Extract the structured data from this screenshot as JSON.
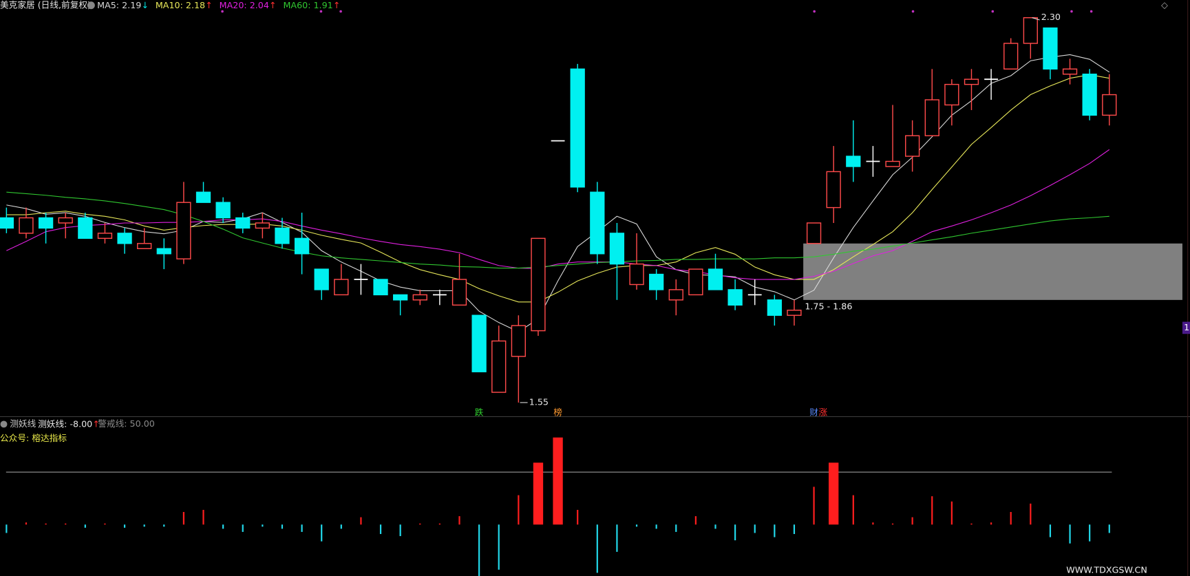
{
  "chart_data": [
    {
      "type": "candlestick",
      "title": "美克家居 (日线,前复权)",
      "ylim": [
        1.53,
        2.33
      ],
      "candles": {
        "open": [
          1.91,
          1.88,
          1.91,
          1.9,
          1.91,
          1.87,
          1.88,
          1.85,
          1.85,
          1.83,
          1.96,
          1.94,
          1.91,
          1.89,
          1.89,
          1.87,
          1.81,
          1.76,
          1.79,
          1.79,
          1.76,
          1.75,
          1.76,
          1.74,
          1.72,
          1.57,
          1.64,
          1.69,
          2.06,
          2.2,
          1.96,
          1.88,
          1.78,
          1.8,
          1.75,
          1.76,
          1.81,
          1.77,
          1.76,
          1.75,
          1.72,
          1.86,
          1.93,
          2.03,
          2.02,
          2.01,
          2.03,
          2.07,
          2.13,
          2.17,
          2.18,
          2.2,
          2.25,
          2.28,
          2.19,
          2.19,
          2.11
        ],
        "high": [
          1.93,
          1.93,
          1.92,
          1.92,
          1.92,
          1.9,
          1.89,
          1.89,
          1.87,
          1.98,
          1.98,
          1.95,
          1.92,
          1.92,
          1.91,
          1.92,
          1.81,
          1.82,
          1.82,
          1.79,
          1.76,
          1.77,
          1.77,
          1.84,
          1.72,
          1.7,
          1.72,
          1.87,
          2.06,
          2.21,
          1.98,
          1.9,
          1.88,
          1.81,
          1.79,
          1.81,
          1.84,
          1.79,
          1.79,
          1.76,
          1.75,
          1.9,
          2.05,
          2.1,
          2.05,
          2.13,
          2.1,
          2.2,
          2.18,
          2.2,
          2.2,
          2.26,
          2.3,
          2.28,
          2.22,
          2.2,
          2.19
        ],
        "low": [
          1.88,
          1.87,
          1.86,
          1.87,
          1.87,
          1.86,
          1.84,
          1.85,
          1.81,
          1.82,
          1.94,
          1.9,
          1.88,
          1.87,
          1.85,
          1.8,
          1.75,
          1.76,
          1.76,
          1.76,
          1.72,
          1.74,
          1.74,
          1.74,
          1.61,
          1.57,
          1.55,
          1.68,
          2.06,
          1.96,
          1.82,
          1.75,
          1.77,
          1.75,
          1.72,
          1.76,
          1.77,
          1.73,
          1.74,
          1.7,
          1.7,
          1.86,
          1.9,
          1.98,
          1.99,
          2.01,
          2.0,
          2.07,
          2.09,
          2.12,
          2.14,
          2.2,
          2.22,
          2.18,
          2.17,
          2.1,
          2.09
        ],
        "close": [
          1.89,
          1.91,
          1.89,
          1.91,
          1.87,
          1.88,
          1.86,
          1.86,
          1.84,
          1.94,
          1.94,
          1.91,
          1.89,
          1.9,
          1.86,
          1.84,
          1.77,
          1.79,
          1.79,
          1.76,
          1.75,
          1.76,
          1.76,
          1.79,
          1.61,
          1.67,
          1.7,
          1.87,
          2.06,
          1.97,
          1.84,
          1.82,
          1.82,
          1.77,
          1.77,
          1.81,
          1.77,
          1.74,
          1.76,
          1.72,
          1.73,
          1.9,
          2.0,
          2.01,
          2.02,
          2.02,
          2.07,
          2.14,
          2.17,
          2.18,
          2.18,
          2.25,
          2.3,
          2.2,
          2.2,
          2.11,
          2.15
        ]
      },
      "up_color": "#ff4a4a",
      "down_color": "#00f0f0",
      "flat_color": "#ffffff",
      "series": [
        {
          "name": "MA5: 2.19",
          "arrow": "↓",
          "arrow_color": "#00e0e0",
          "color": "#d8d8d8",
          "values": [
            1.935,
            1.928,
            1.917,
            1.92,
            1.913,
            1.901,
            1.891,
            1.883,
            1.879,
            1.886,
            1.903,
            1.901,
            1.908,
            1.92,
            1.901,
            1.882,
            1.846,
            1.824,
            1.806,
            1.787,
            1.775,
            1.768,
            1.768,
            1.768,
            1.728,
            1.706,
            1.688,
            1.713,
            1.787,
            1.854,
            1.883,
            1.913,
            1.898,
            1.834,
            1.809,
            1.799,
            1.798,
            1.795,
            1.775,
            1.766,
            1.75,
            1.769,
            1.832,
            1.891,
            1.943,
            1.994,
            2.028,
            2.068,
            2.11,
            2.138,
            2.172,
            2.187,
            2.216,
            2.223,
            2.228,
            2.219,
            2.194
          ]
        },
        {
          "name": "MA10: 2.18",
          "arrow": "↑",
          "arrow_color": "#ff3030",
          "color": "#e8e85a",
          "values": [
            1.916,
            1.916,
            1.92,
            1.923,
            1.917,
            1.913,
            1.906,
            1.894,
            1.886,
            1.891,
            1.895,
            1.897,
            1.897,
            1.898,
            1.894,
            1.886,
            1.876,
            1.868,
            1.861,
            1.843,
            1.824,
            1.809,
            1.799,
            1.79,
            1.772,
            1.758,
            1.746,
            1.746,
            1.765,
            1.787,
            1.802,
            1.814,
            1.817,
            1.817,
            1.824,
            1.842,
            1.852,
            1.839,
            1.814,
            1.799,
            1.79,
            1.79,
            1.809,
            1.834,
            1.858,
            1.883,
            1.92,
            1.965,
            2.009,
            2.053,
            2.086,
            2.12,
            2.15,
            2.167,
            2.182,
            2.189,
            2.182
          ]
        },
        {
          "name": "MA20: 2.04",
          "arrow": "↑",
          "arrow_color": "#ff3030",
          "color": "#e020e0",
          "values": [
            1.846,
            1.864,
            1.883,
            1.891,
            1.895,
            1.897,
            1.9,
            1.9,
            1.901,
            1.901,
            1.903,
            1.906,
            1.906,
            1.908,
            1.903,
            1.894,
            1.886,
            1.879,
            1.871,
            1.864,
            1.858,
            1.854,
            1.849,
            1.842,
            1.829,
            1.817,
            1.812,
            1.811,
            1.82,
            1.824,
            1.824,
            1.824,
            1.82,
            1.817,
            1.809,
            1.805,
            1.799,
            1.793,
            1.79,
            1.79,
            1.79,
            1.796,
            1.806,
            1.821,
            1.836,
            1.846,
            1.864,
            1.883,
            1.894,
            1.906,
            1.92,
            1.935,
            1.953,
            1.973,
            1.994,
            2.016,
            2.043
          ]
        },
        {
          "name": "MA60: 1.91",
          "arrow": "↑",
          "arrow_color": "#ff3030",
          "color": "#30c830",
          "values": [
            1.96,
            1.957,
            1.954,
            1.95,
            1.947,
            1.943,
            1.938,
            1.932,
            1.926,
            1.916,
            1.903,
            1.888,
            1.871,
            1.861,
            1.851,
            1.843,
            1.836,
            1.832,
            1.829,
            1.826,
            1.823,
            1.82,
            1.818,
            1.815,
            1.814,
            1.812,
            1.812,
            1.814,
            1.817,
            1.82,
            1.823,
            1.824,
            1.826,
            1.827,
            1.829,
            1.829,
            1.83,
            1.83,
            1.83,
            1.832,
            1.832,
            1.834,
            1.839,
            1.845,
            1.849,
            1.855,
            1.861,
            1.867,
            1.873,
            1.88,
            1.886,
            1.892,
            1.898,
            1.904,
            1.908,
            1.91,
            1.913
          ]
        }
      ],
      "zone": {
        "low": 1.75,
        "high": 1.86,
        "label": "1.75 - 1.86",
        "from": 41,
        "color": "#808080"
      },
      "annotations": [
        {
          "label": "2.30",
          "value": 2.3
        },
        {
          "label": "1.55",
          "value": 1.55
        }
      ],
      "events": [
        {
          "label": "跌",
          "color": "#30d030",
          "at": 24
        },
        {
          "label": "榜",
          "color": "#ff9a30",
          "at": 28
        },
        {
          "label": "财",
          "color": "#5a8cff",
          "at": 41
        },
        {
          "label": "涨",
          "color": "#ff3030",
          "at": 41
        }
      ],
      "corner_mark": "◇",
      "badge": "1"
    },
    {
      "type": "bar",
      "name": "测妖线",
      "value_label": "测妖线: -8.00",
      "arrow": "↑",
      "arrow_color": "#ff3030",
      "ylim": [
        -49,
        100
      ],
      "values": [
        -8,
        2,
        1,
        1,
        -3,
        1,
        -3,
        -2,
        -2,
        12,
        14,
        -4,
        -7,
        -2,
        -4,
        -7,
        -16,
        -4,
        7,
        -9,
        -11,
        1,
        1,
        8,
        -49,
        -43,
        28,
        59,
        83,
        14,
        -46,
        -26,
        -2,
        -4,
        -7,
        8,
        -4,
        -15,
        -8,
        -12,
        -9,
        36,
        59,
        28,
        2,
        1,
        7,
        27,
        22,
        1,
        2,
        12,
        20,
        -12,
        -18,
        -16,
        -8
      ],
      "up_color": "#ff1e1e",
      "down_color": "#22d8ea",
      "warning_line": {
        "value": 50,
        "label": "警戒线: 50.00"
      },
      "note": "公众号: 榕达指标",
      "watermark": "WWW.TDXGSW.CN"
    }
  ]
}
